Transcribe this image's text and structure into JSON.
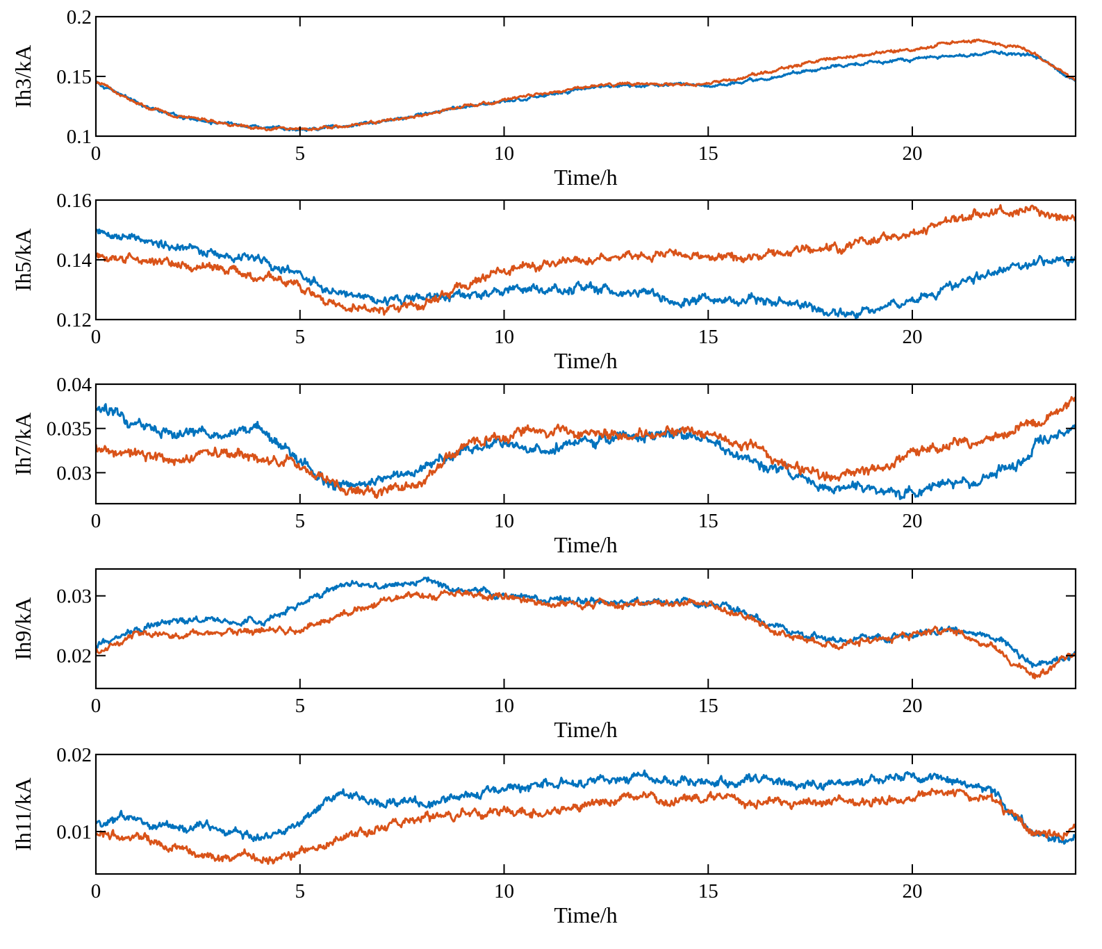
{
  "chart_data": [
    {
      "type": "line",
      "ylabel": "Ih3/kA",
      "xlabel": "Time/h",
      "xlim": [
        0,
        24
      ],
      "ylim": [
        0.1,
        0.2
      ],
      "xticks": [
        0,
        5,
        10,
        15,
        20
      ],
      "xtick_labels": [
        "0",
        "5",
        "10",
        "15",
        "20"
      ],
      "yticks": [
        0.1,
        0.15,
        0.2
      ],
      "ytick_labels": [
        "0.1",
        "0.15",
        "0.2"
      ],
      "series": [
        {
          "name": "series-blue",
          "color": "#0072BD",
          "noise": 0.0012,
          "x": [
            0,
            1,
            2,
            3,
            4,
            5,
            6,
            7,
            8,
            9,
            10,
            11,
            12,
            13,
            14,
            15,
            16,
            17,
            18,
            19,
            20,
            21,
            22,
            23,
            24
          ],
          "y": [
            0.145,
            0.128,
            0.117,
            0.111,
            0.107,
            0.106,
            0.108,
            0.112,
            0.118,
            0.124,
            0.129,
            0.135,
            0.14,
            0.143,
            0.143,
            0.143,
            0.146,
            0.152,
            0.158,
            0.162,
            0.164,
            0.167,
            0.17,
            0.168,
            0.147
          ]
        },
        {
          "name": "series-orange",
          "color": "#D95319",
          "noise": 0.0012,
          "x": [
            0,
            1,
            2,
            3,
            4,
            5,
            6,
            7,
            8,
            9,
            10,
            11,
            12,
            13,
            14,
            15,
            16,
            17,
            18,
            19,
            20,
            21,
            22,
            23,
            24
          ],
          "y": [
            0.145,
            0.128,
            0.117,
            0.111,
            0.107,
            0.106,
            0.108,
            0.112,
            0.118,
            0.125,
            0.13,
            0.136,
            0.141,
            0.144,
            0.143,
            0.144,
            0.15,
            0.158,
            0.165,
            0.169,
            0.173,
            0.179,
            0.178,
            0.17,
            0.147
          ]
        }
      ]
    },
    {
      "type": "line",
      "ylabel": "Ih5/kA",
      "xlabel": "Time/h",
      "xlim": [
        0,
        24
      ],
      "ylim": [
        0.12,
        0.16
      ],
      "xticks": [
        0,
        5,
        10,
        15,
        20
      ],
      "xtick_labels": [
        "0",
        "5",
        "10",
        "15",
        "20"
      ],
      "yticks": [
        0.12,
        0.14,
        0.16
      ],
      "ytick_labels": [
        "0.12",
        "0.14",
        "0.16"
      ],
      "series": [
        {
          "name": "series-blue",
          "color": "#0072BD",
          "noise": 0.0014,
          "x": [
            0,
            1,
            2,
            3,
            4,
            5,
            6,
            7,
            8,
            9,
            10,
            11,
            12,
            13,
            14,
            15,
            16,
            17,
            18,
            19,
            20,
            21,
            22,
            23,
            24
          ],
          "y": [
            0.15,
            0.148,
            0.145,
            0.142,
            0.14,
            0.135,
            0.128,
            0.126,
            0.127,
            0.128,
            0.129,
            0.13,
            0.131,
            0.129,
            0.128,
            0.126,
            0.127,
            0.125,
            0.122,
            0.123,
            0.127,
            0.131,
            0.136,
            0.138,
            0.14
          ]
        },
        {
          "name": "series-orange",
          "color": "#D95319",
          "noise": 0.0014,
          "x": [
            0,
            1,
            2,
            3,
            4,
            5,
            6,
            7,
            8,
            9,
            10,
            11,
            12,
            13,
            14,
            15,
            16,
            17,
            18,
            19,
            20,
            21,
            22,
            23,
            24
          ],
          "y": [
            0.141,
            0.14,
            0.139,
            0.137,
            0.135,
            0.131,
            0.124,
            0.123,
            0.125,
            0.131,
            0.136,
            0.138,
            0.14,
            0.141,
            0.142,
            0.141,
            0.14,
            0.142,
            0.143,
            0.146,
            0.149,
            0.153,
            0.156,
            0.156,
            0.153
          ]
        }
      ]
    },
    {
      "type": "line",
      "ylabel": "Ih7/kA",
      "xlabel": "Time/h",
      "xlim": [
        0,
        24
      ],
      "ylim": [
        0.0265,
        0.04
      ],
      "xticks": [
        0,
        5,
        10,
        15,
        20
      ],
      "xtick_labels": [
        "0",
        "5",
        "10",
        "15",
        "20"
      ],
      "yticks": [
        0.03,
        0.035,
        0.04
      ],
      "ytick_labels": [
        "0.03",
        "0.035",
        "0.04"
      ],
      "series": [
        {
          "name": "series-blue",
          "color": "#0072BD",
          "noise": 0.00055,
          "x": [
            0,
            1,
            2,
            3,
            4,
            5,
            6,
            7,
            8,
            9,
            10,
            11,
            12,
            13,
            14,
            15,
            16,
            17,
            18,
            19,
            20,
            21,
            22,
            23,
            24
          ],
          "y": [
            0.0375,
            0.0355,
            0.0345,
            0.034,
            0.035,
            0.031,
            0.0285,
            0.029,
            0.03,
            0.0325,
            0.033,
            0.033,
            0.0335,
            0.034,
            0.0345,
            0.0335,
            0.0315,
            0.03,
            0.0285,
            0.028,
            0.0278,
            0.0285,
            0.0295,
            0.033,
            0.035
          ]
        },
        {
          "name": "series-orange",
          "color": "#D95319",
          "noise": 0.00055,
          "x": [
            0,
            1,
            2,
            3,
            4,
            5,
            6,
            7,
            8,
            9,
            10,
            11,
            12,
            13,
            14,
            15,
            16,
            17,
            18,
            19,
            20,
            21,
            22,
            23,
            24
          ],
          "y": [
            0.033,
            0.032,
            0.0315,
            0.0322,
            0.0318,
            0.031,
            0.0282,
            0.0275,
            0.029,
            0.033,
            0.0345,
            0.035,
            0.0345,
            0.034,
            0.0345,
            0.0345,
            0.033,
            0.0305,
            0.0295,
            0.03,
            0.032,
            0.033,
            0.034,
            0.0355,
            0.038
          ]
        }
      ]
    },
    {
      "type": "line",
      "ylabel": "Ih9/kA",
      "xlabel": "Time/h",
      "xlim": [
        0,
        24
      ],
      "ylim": [
        0.0145,
        0.0345
      ],
      "xticks": [
        0,
        5,
        10,
        15,
        20
      ],
      "xtick_labels": [
        "0",
        "5",
        "10",
        "15",
        "20"
      ],
      "yticks": [
        0.02,
        0.03
      ],
      "ytick_labels": [
        "0.02",
        "0.03"
      ],
      "series": [
        {
          "name": "series-blue",
          "color": "#0072BD",
          "noise": 0.00055,
          "x": [
            0,
            1,
            2,
            3,
            4,
            5,
            6,
            7,
            8,
            9,
            10,
            11,
            12,
            13,
            14,
            15,
            16,
            17,
            18,
            19,
            20,
            21,
            22,
            23,
            24
          ],
          "y": [
            0.0215,
            0.0245,
            0.026,
            0.026,
            0.0255,
            0.0285,
            0.032,
            0.0315,
            0.0325,
            0.031,
            0.03,
            0.0295,
            0.029,
            0.029,
            0.0292,
            0.029,
            0.027,
            0.024,
            0.0225,
            0.023,
            0.024,
            0.0245,
            0.023,
            0.018,
            0.02
          ]
        },
        {
          "name": "series-orange",
          "color": "#D95319",
          "noise": 0.00055,
          "x": [
            0,
            1,
            2,
            3,
            4,
            5,
            6,
            7,
            8,
            9,
            10,
            11,
            12,
            13,
            14,
            15,
            16,
            17,
            18,
            19,
            20,
            21,
            22,
            23,
            24
          ],
          "y": [
            0.021,
            0.024,
            0.0235,
            0.0238,
            0.024,
            0.0245,
            0.027,
            0.029,
            0.03,
            0.0305,
            0.03,
            0.029,
            0.0285,
            0.0285,
            0.0288,
            0.0288,
            0.0265,
            0.0235,
            0.022,
            0.0228,
            0.0235,
            0.024,
            0.0215,
            0.0165,
            0.0205
          ]
        }
      ]
    },
    {
      "type": "line",
      "ylabel": "Ih11/kA",
      "xlabel": "Time/h",
      "xlim": [
        0,
        24
      ],
      "ylim": [
        0.0045,
        0.02
      ],
      "xticks": [
        0,
        5,
        10,
        15,
        20
      ],
      "xtick_labels": [
        "0",
        "5",
        "10",
        "15",
        "20"
      ],
      "yticks": [
        0.01,
        0.02
      ],
      "ytick_labels": [
        "0.01",
        "0.02"
      ],
      "series": [
        {
          "name": "series-blue",
          "color": "#0072BD",
          "noise": 0.00055,
          "x": [
            0,
            1,
            2,
            3,
            4,
            5,
            6,
            7,
            8,
            9,
            10,
            11,
            12,
            13,
            14,
            15,
            16,
            17,
            18,
            19,
            20,
            21,
            22,
            23,
            24
          ],
          "y": [
            0.0115,
            0.0115,
            0.0105,
            0.01,
            0.009,
            0.011,
            0.015,
            0.014,
            0.0135,
            0.0145,
            0.0155,
            0.016,
            0.0165,
            0.017,
            0.0165,
            0.0165,
            0.0168,
            0.016,
            0.0162,
            0.0165,
            0.017,
            0.0168,
            0.015,
            0.0095,
            0.009
          ]
        },
        {
          "name": "series-orange",
          "color": "#D95319",
          "noise": 0.00055,
          "x": [
            0,
            1,
            2,
            3,
            4,
            5,
            6,
            7,
            8,
            9,
            10,
            11,
            12,
            13,
            14,
            15,
            16,
            17,
            18,
            19,
            20,
            21,
            22,
            23,
            24
          ],
          "y": [
            0.0095,
            0.009,
            0.0075,
            0.0065,
            0.0065,
            0.007,
            0.009,
            0.0105,
            0.0115,
            0.0125,
            0.0125,
            0.0125,
            0.0135,
            0.0145,
            0.014,
            0.0145,
            0.014,
            0.0135,
            0.014,
            0.014,
            0.0145,
            0.015,
            0.014,
            0.0095,
            0.01
          ]
        }
      ]
    }
  ]
}
